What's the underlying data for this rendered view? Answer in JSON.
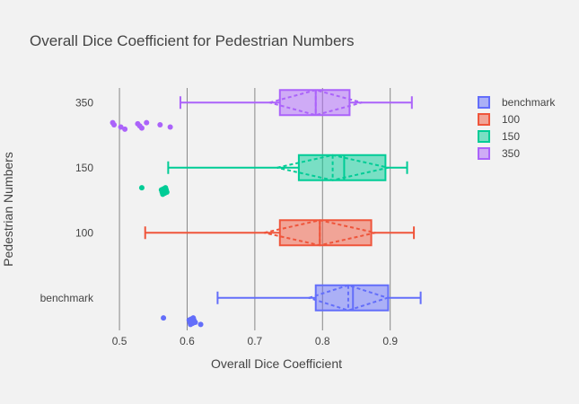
{
  "chart_data": {
    "type": "box",
    "orientation": "horizontal",
    "title": "Overall Dice Coefficient for Pedestrian Numbers",
    "xlabel": "Overall Dice Coefficient",
    "ylabel": "Pedestrian Numbers",
    "xlim": [
      0.48,
      0.98
    ],
    "x_ticks": [
      0.5,
      0.6,
      0.7,
      0.8,
      0.9
    ],
    "x_tick_labels": [
      "0.5",
      "0.6",
      "0.7",
      "0.8",
      "0.9"
    ],
    "grid": "vertical",
    "legend_position": "top-right",
    "categories": [
      "benchmark",
      "100",
      "150",
      "350"
    ],
    "series": [
      {
        "name": "benchmark",
        "color": "#636efa",
        "min": 0.645,
        "q1": 0.79,
        "median": 0.845,
        "q3": 0.897,
        "max": 0.945,
        "mean": 0.838,
        "sd": 0.058,
        "outliers": [
          0.565,
          0.603,
          0.604,
          0.605,
          0.606,
          0.607,
          0.608,
          0.609,
          0.61,
          0.612,
          0.62
        ]
      },
      {
        "name": "100",
        "color": "#ef553b",
        "min": 0.538,
        "q1": 0.737,
        "median": 0.796,
        "q3": 0.872,
        "max": 0.935,
        "mean": 0.796,
        "sd": 0.082,
        "outliers": []
      },
      {
        "name": "150",
        "color": "#00cc96",
        "min": 0.572,
        "q1": 0.765,
        "median": 0.832,
        "q3": 0.893,
        "max": 0.925,
        "mean": 0.815,
        "sd": 0.082,
        "outliers": [
          0.533,
          0.562,
          0.563,
          0.564,
          0.565,
          0.566,
          0.567,
          0.568,
          0.569,
          0.57
        ]
      },
      {
        "name": "350",
        "color": "#ab63fa",
        "min": 0.59,
        "q1": 0.737,
        "median": 0.79,
        "q3": 0.84,
        "max": 0.932,
        "mean": 0.79,
        "sd": 0.068,
        "outliers": [
          0.49,
          0.492,
          0.502,
          0.508,
          0.527,
          0.53,
          0.533,
          0.54,
          0.56,
          0.575
        ]
      }
    ]
  }
}
